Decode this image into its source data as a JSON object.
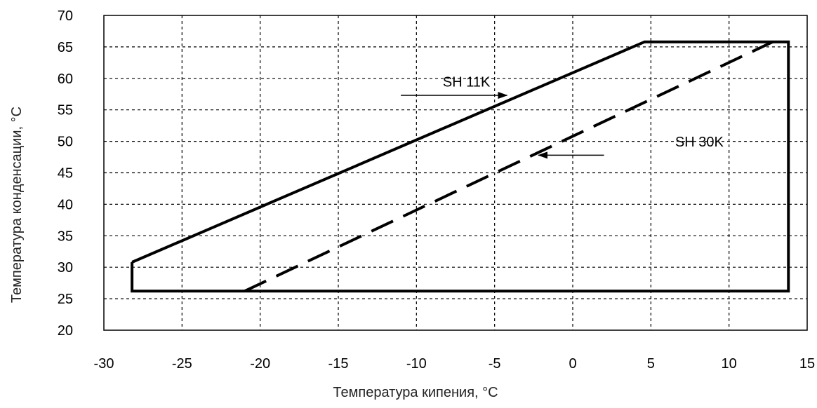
{
  "chart_data": {
    "type": "line",
    "xlabel": "Температура кипения, °C",
    "ylabel": "Температура конденсации, °C",
    "xlim": [
      -30,
      15
    ],
    "ylim": [
      20,
      70
    ],
    "xticks": [
      -30,
      -25,
      -20,
      -15,
      -10,
      -5,
      0,
      5,
      10,
      15
    ],
    "yticks": [
      20,
      25,
      30,
      35,
      40,
      45,
      50,
      55,
      60,
      65,
      70
    ],
    "grid": true,
    "series": [
      {
        "name": "SH 11K",
        "style": "solid",
        "x": [
          -28.2,
          -28.2,
          13.8,
          13.8,
          4.6,
          -28.2
        ],
        "y": [
          26.2,
          30.8,
          26.2,
          65.8,
          65.8,
          30.8
        ],
        "path_order": [
          [
            -28.2,
            30.8
          ],
          [
            -28.2,
            26.2
          ],
          [
            13.8,
            26.2
          ],
          [
            13.8,
            65.8
          ],
          [
            4.6,
            65.8
          ],
          [
            -28.2,
            30.8
          ]
        ]
      },
      {
        "name": "SH 30K",
        "style": "dashed",
        "path_order": [
          [
            -21,
            26.2
          ],
          [
            12.8,
            65.8
          ]
        ]
      }
    ],
    "annotations": [
      {
        "text": "SH 11K",
        "label_at": [
          -6.8,
          58.7
        ],
        "arrow_from": [
          -11,
          57.3
        ],
        "arrow_to": [
          -4.2,
          57.3
        ]
      },
      {
        "text": "SH 30K",
        "label_at": [
          8.1,
          49.2
        ],
        "arrow_from": [
          2,
          47.8
        ],
        "arrow_to": [
          -2.2,
          47.8
        ]
      }
    ],
    "colors": {
      "line": "#000000",
      "grid": "#000000",
      "ylabel_main": "#5a2a3a",
      "ylabel_unit_tail": "#2e8b2e"
    }
  }
}
